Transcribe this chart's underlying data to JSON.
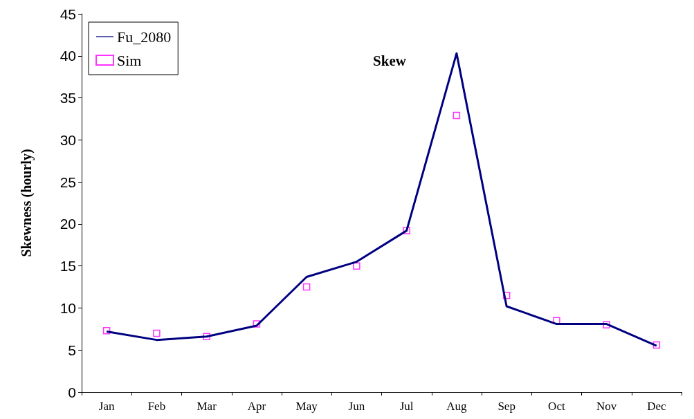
{
  "chart_data": {
    "type": "line",
    "title": "Skew",
    "ylabel": "Skewness (hourly)",
    "categories": [
      "Jan",
      "Feb",
      "Mar",
      "Apr",
      "May",
      "Jun",
      "Jul",
      "Aug",
      "Sep",
      "Oct",
      "Nov",
      "Dec"
    ],
    "series": [
      {
        "name": "Fu_2080",
        "color": "#000080",
        "marker": "none",
        "line_style": "solid",
        "values": [
          7.2,
          6.2,
          6.6,
          7.9,
          13.7,
          15.5,
          19.2,
          40.3,
          10.2,
          8.1,
          8.1,
          5.5
        ]
      },
      {
        "name": "Sim",
        "type": "scatter",
        "color": "#ff00ff",
        "marker": "square",
        "values": [
          7.3,
          7.0,
          6.6,
          8.1,
          12.5,
          15.0,
          19.2,
          32.9,
          11.5,
          8.5,
          8.0,
          5.6
        ]
      }
    ],
    "ylim": [
      0,
      45
    ],
    "yticks": [
      0,
      5,
      10,
      15,
      20,
      25,
      30,
      35,
      40,
      45
    ],
    "grid": false,
    "legend": "top left"
  }
}
